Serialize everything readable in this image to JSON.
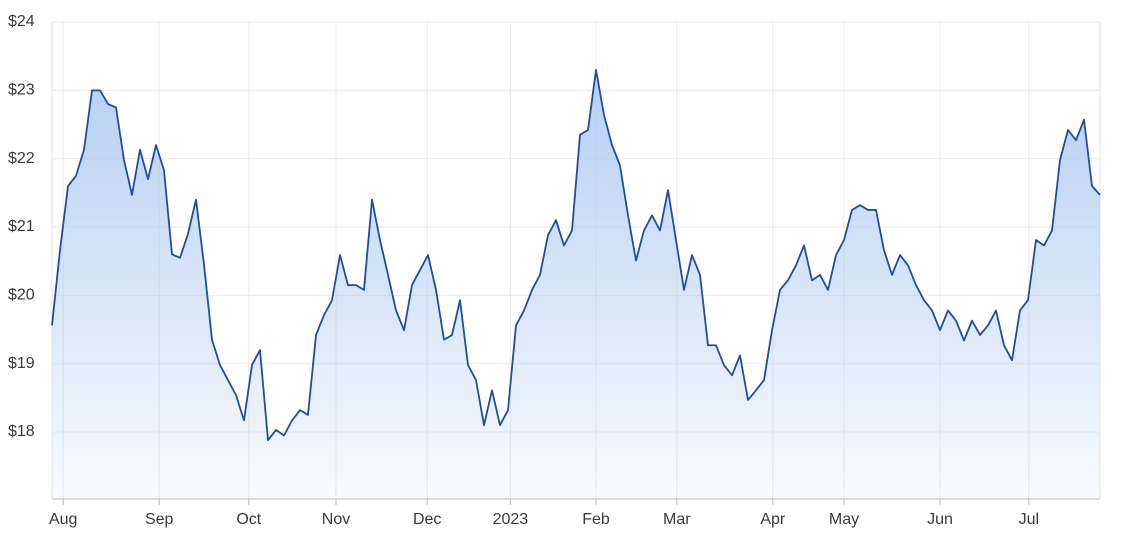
{
  "chart_data": {
    "type": "area-line",
    "color": "#1f4e9e",
    "fill_color": "#a9c7f0",
    "grid": true,
    "x": [
      0,
      1,
      2,
      3,
      4,
      5,
      6,
      7,
      8,
      9,
      10,
      11,
      12,
      13,
      14,
      15,
      16,
      17,
      18,
      19,
      20,
      21,
      22,
      23,
      24,
      25,
      26,
      27,
      28,
      29,
      30,
      31,
      32,
      33,
      34,
      35,
      36,
      37,
      38,
      39,
      40,
      41,
      42,
      43,
      44,
      45,
      46,
      47,
      48,
      49,
      50,
      51,
      52,
      53,
      54,
      55,
      56,
      57,
      58,
      59,
      60,
      61,
      62,
      63,
      64,
      65,
      66,
      67,
      68,
      69,
      70,
      71,
      72,
      73,
      74,
      75,
      76,
      77,
      78,
      79,
      80,
      81,
      82,
      83,
      84,
      85,
      86,
      87,
      88,
      89,
      90,
      91,
      92,
      93,
      94,
      95,
      96,
      97,
      98,
      99,
      100,
      101,
      102,
      103,
      104,
      105,
      106,
      107,
      108,
      109,
      110,
      111,
      112,
      113,
      114,
      115,
      116,
      117,
      118,
      119,
      120,
      121,
      122,
      123,
      124,
      125,
      126,
      127,
      128,
      129,
      130,
      131
    ],
    "values": [
      19.56,
      20.66,
      21.6,
      21.75,
      22.13,
      23.0,
      23.0,
      22.8,
      22.75,
      21.98,
      21.47,
      22.13,
      21.7,
      22.2,
      21.83,
      20.6,
      20.55,
      20.9,
      21.4,
      20.45,
      19.35,
      18.98,
      18.76,
      18.54,
      18.17,
      18.98,
      19.2,
      17.88,
      18.03,
      17.95,
      18.17,
      18.32,
      18.25,
      19.42,
      19.71,
      19.93,
      20.59,
      20.15,
      20.15,
      20.08,
      21.4,
      20.81,
      20.3,
      19.78,
      19.49,
      20.15,
      20.37,
      20.59,
      20.08,
      19.35,
      19.42,
      19.93,
      18.98,
      18.76,
      18.1,
      18.61,
      18.1,
      18.32,
      19.56,
      19.78,
      20.08,
      20.3,
      20.88,
      21.1,
      20.73,
      20.95,
      22.35,
      22.42,
      23.3,
      22.64,
      22.2,
      21.9,
      21.17,
      20.51,
      20.95,
      21.17,
      20.95,
      21.54,
      20.81,
      20.08,
      20.59,
      20.3,
      19.27,
      19.27,
      18.98,
      18.83,
      19.12,
      18.47,
      18.61,
      18.76,
      19.49,
      20.08,
      20.22,
      20.44,
      20.73,
      20.22,
      20.3,
      20.08,
      20.59,
      20.81,
      21.25,
      21.32,
      21.25,
      21.25,
      20.66,
      20.3,
      20.59,
      20.44,
      20.15,
      19.93,
      19.78,
      19.49,
      19.78,
      19.63,
      19.34,
      19.63,
      19.42,
      19.56,
      19.78,
      19.27,
      19.05,
      19.78,
      19.93,
      20.81,
      20.73,
      20.95,
      21.98,
      22.42,
      22.27,
      22.57,
      21.6,
      21.47
    ],
    "xlim": [
      0,
      131
    ],
    "xticks": [
      {
        "value": 1.4,
        "label": "Aug"
      },
      {
        "value": 13.4,
        "label": "Sep"
      },
      {
        "value": 24.6,
        "label": "Oct"
      },
      {
        "value": 35.5,
        "label": "Nov"
      },
      {
        "value": 46.9,
        "label": "Dec"
      },
      {
        "value": 57.3,
        "label": "2023"
      },
      {
        "value": 68,
        "label": "Feb"
      },
      {
        "value": 78.1,
        "label": "Mar"
      },
      {
        "value": 90.1,
        "label": "Apr"
      },
      {
        "value": 99,
        "label": "May"
      },
      {
        "value": 111,
        "label": "Jun"
      },
      {
        "value": 122.1,
        "label": "Jul"
      }
    ],
    "ylim": [
      17.02,
      24
    ],
    "yticks": [
      {
        "value": 18,
        "label": "$18"
      },
      {
        "value": 19,
        "label": "$19"
      },
      {
        "value": 20,
        "label": "$20"
      },
      {
        "value": 21,
        "label": "$21"
      },
      {
        "value": 22,
        "label": "$22"
      },
      {
        "value": 23,
        "label": "$23"
      },
      {
        "value": 24,
        "label": "$24"
      }
    ]
  }
}
